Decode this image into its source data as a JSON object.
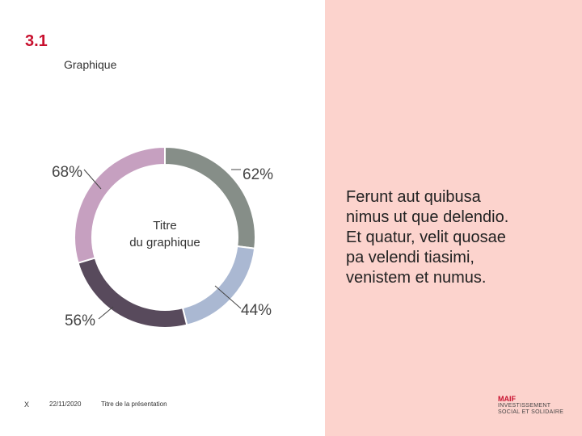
{
  "section": {
    "number": "3.1",
    "label": "Graphique"
  },
  "body_text": "Ferunt aut quibusa\nnimus ut que delendio.\nEt quatur, velit quosae\npa velendi tiasimi,\nvenistem et numus.",
  "footer": {
    "slide_number": "X",
    "date": "22/11/2020",
    "title": "Titre de la présentation"
  },
  "logo": {
    "brand": "MAIF",
    "line1": "INVESTISSEMENT",
    "line2": "SOCIAL ET SOLIDAIRE"
  },
  "colors": {
    "accent": "#c8102e",
    "panel": "#fcd3cd"
  },
  "chart_data": {
    "type": "pie",
    "variant": "donut",
    "title": "Titre\ndu graphique",
    "series": [
      {
        "label": "62%",
        "value": 62,
        "color": "#868e88"
      },
      {
        "label": "44%",
        "value": 44,
        "color": "#aab8d2"
      },
      {
        "label": "56%",
        "value": 56,
        "color": "#584a5c"
      },
      {
        "label": "68%",
        "value": 68,
        "color": "#c6a0c0"
      }
    ]
  }
}
